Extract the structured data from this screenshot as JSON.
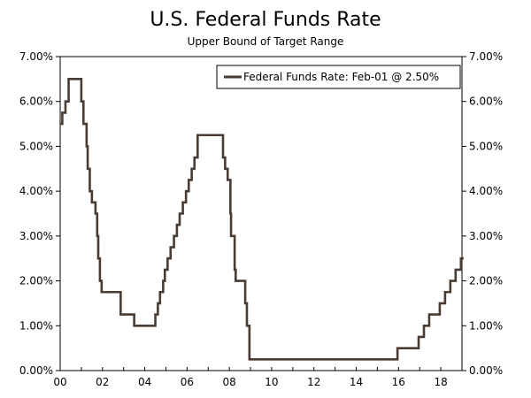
{
  "chart_data": {
    "type": "line",
    "title": "U.S. Federal Funds Rate",
    "subtitle": "Upper Bound of Target Range",
    "xlabel": "",
    "ylabel": "",
    "xlim": [
      2000,
      2019
    ],
    "ylim": [
      0,
      7
    ],
    "x_ticks": [
      {
        "value": 2000,
        "label": "00"
      },
      {
        "value": 2002,
        "label": "02"
      },
      {
        "value": 2004,
        "label": "04"
      },
      {
        "value": 2006,
        "label": "06"
      },
      {
        "value": 2008,
        "label": "08"
      },
      {
        "value": 2010,
        "label": "10"
      },
      {
        "value": 2012,
        "label": "12"
      },
      {
        "value": 2014,
        "label": "14"
      },
      {
        "value": 2016,
        "label": "16"
      },
      {
        "value": 2018,
        "label": "18"
      }
    ],
    "y_ticks": [
      {
        "value": 0,
        "label": "0.00%"
      },
      {
        "value": 1,
        "label": "1.00%"
      },
      {
        "value": 2,
        "label": "2.00%"
      },
      {
        "value": 3,
        "label": "3.00%"
      },
      {
        "value": 4,
        "label": "4.00%"
      },
      {
        "value": 5,
        "label": "5.00%"
      },
      {
        "value": 6,
        "label": "6.00%"
      },
      {
        "value": 7,
        "label": "7.00%"
      }
    ],
    "legend": {
      "label": "Federal Funds Rate: Feb-01 @ 2.50%",
      "position": "top-right"
    },
    "series": [
      {
        "name": "Federal Funds Rate",
        "color": "#4a3c32",
        "step": true,
        "points": [
          [
            2000.0,
            5.5
          ],
          [
            2000.1,
            5.75
          ],
          [
            2000.25,
            6.0
          ],
          [
            2000.4,
            6.5
          ],
          [
            2001.0,
            6.0
          ],
          [
            2001.1,
            5.5
          ],
          [
            2001.25,
            5.0
          ],
          [
            2001.3,
            4.5
          ],
          [
            2001.4,
            4.0
          ],
          [
            2001.5,
            3.75
          ],
          [
            2001.67,
            3.5
          ],
          [
            2001.75,
            3.0
          ],
          [
            2001.8,
            2.5
          ],
          [
            2001.88,
            2.0
          ],
          [
            2001.96,
            1.75
          ],
          [
            2002.86,
            1.25
          ],
          [
            2003.5,
            1.0
          ],
          [
            2004.5,
            1.25
          ],
          [
            2004.62,
            1.5
          ],
          [
            2004.72,
            1.75
          ],
          [
            2004.87,
            2.0
          ],
          [
            2004.95,
            2.25
          ],
          [
            2005.08,
            2.5
          ],
          [
            2005.22,
            2.75
          ],
          [
            2005.38,
            3.0
          ],
          [
            2005.52,
            3.25
          ],
          [
            2005.65,
            3.5
          ],
          [
            2005.8,
            3.75
          ],
          [
            2005.95,
            4.0
          ],
          [
            2006.08,
            4.25
          ],
          [
            2006.22,
            4.5
          ],
          [
            2006.35,
            4.75
          ],
          [
            2006.5,
            5.25
          ],
          [
            2007.7,
            4.75
          ],
          [
            2007.8,
            4.5
          ],
          [
            2007.92,
            4.25
          ],
          [
            2008.05,
            3.5
          ],
          [
            2008.08,
            3.0
          ],
          [
            2008.25,
            2.25
          ],
          [
            2008.3,
            2.0
          ],
          [
            2008.75,
            1.5
          ],
          [
            2008.83,
            1.0
          ],
          [
            2008.95,
            0.25
          ],
          [
            2015.95,
            0.5
          ],
          [
            2016.95,
            0.75
          ],
          [
            2017.2,
            1.0
          ],
          [
            2017.45,
            1.25
          ],
          [
            2017.95,
            1.5
          ],
          [
            2018.2,
            1.75
          ],
          [
            2018.45,
            2.0
          ],
          [
            2018.7,
            2.25
          ],
          [
            2018.95,
            2.5
          ],
          [
            2019.08,
            2.5
          ]
        ]
      }
    ]
  }
}
